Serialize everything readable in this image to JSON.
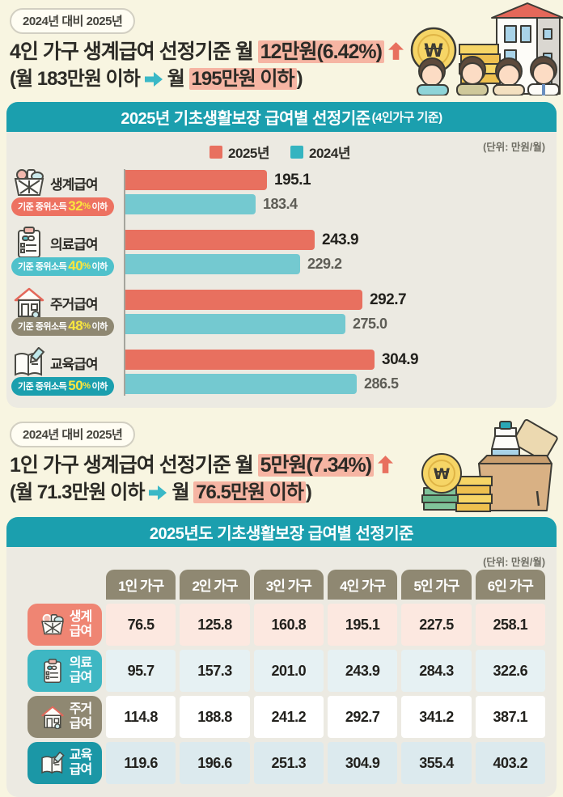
{
  "colors": {
    "page_bg": "#f8f5e1",
    "panel_bg": "#eceae2",
    "banner_teal": "#1b9fae",
    "highlight_pink": "#f6b5a3",
    "bar_2025_red": "#e8705f",
    "bar_2024_teal": "#74c9d0",
    "legend_2024_teal": "#35b4c0",
    "table_header_olive": "#8f8872",
    "pill_yellow_text": "#f9e53e"
  },
  "section1": {
    "badge": "2024년 대비 2025년",
    "title_pre": "4인 가구 생계급여 선정기준 월 ",
    "title_highlight": "12만원(6.42%)",
    "sub_pre": "(월 183만원 이하",
    "sub_mid": "월 ",
    "sub_highlight": "195만원 이하",
    "sub_post": ")"
  },
  "section2": {
    "badge": "2024년 대비 2025년",
    "title_pre": "1인 가구 생계급여 선정기준 월 ",
    "title_highlight": "5만원(7.34%)",
    "sub_pre": "(월 71.3만원 이하",
    "sub_mid": "월 ",
    "sub_highlight": "76.5만원 이하",
    "sub_post": ")"
  },
  "chart_data": [
    {
      "type": "bar",
      "orientation": "horizontal",
      "title": "2025년 기초생활보장 급여별 선정기준",
      "title_note": "(4인가구 기준)",
      "unit": "(단위: 만원/월)",
      "legend": [
        {
          "label": "2025년",
          "color": "#e8705f"
        },
        {
          "label": "2024년",
          "color": "#35b4c0"
        }
      ],
      "categories": [
        "생계급여",
        "의료급여",
        "주거급여",
        "교육급여"
      ],
      "series": [
        {
          "name": "2025년",
          "values": [
            "195.1",
            "243.9",
            "292.7",
            "304.9"
          ]
        },
        {
          "name": "2024년",
          "values": [
            "183.4",
            "229.2",
            "275.0",
            "286.5"
          ]
        }
      ],
      "thresholds": [
        {
          "pre": "기준 중위소득",
          "num": "32",
          "sign": "%",
          "post": "이하",
          "color": "#ed7261"
        },
        {
          "pre": "기준 중위소득",
          "num": "40",
          "sign": "%",
          "post": "이하",
          "color": "#4fc1cb"
        },
        {
          "pre": "기준 중위소득",
          "num": "48",
          "sign": "%",
          "post": "이하",
          "color": "#8f8872"
        },
        {
          "pre": "기준 중위소득",
          "num": "50",
          "sign": "%",
          "post": "이하",
          "color": "#1b9fae"
        }
      ]
    },
    {
      "type": "table",
      "title": "2025년도 기초생활보장 급여별 선정기준",
      "unit": "(단위: 만원/월)",
      "columns": [
        "1인 가구",
        "2인 가구",
        "3인 가구",
        "4인 가구",
        "5인 가구",
        "6인 가구"
      ],
      "rows": [
        {
          "l1": "생계",
          "l2": "급여",
          "values": [
            "76.5",
            "125.8",
            "160.8",
            "195.1",
            "227.5",
            "258.1"
          ]
        },
        {
          "l1": "의료",
          "l2": "급여",
          "values": [
            "95.7",
            "157.3",
            "201.0",
            "243.9",
            "284.3",
            "322.6"
          ]
        },
        {
          "l1": "주거",
          "l2": "급여",
          "values": [
            "114.8",
            "188.8",
            "241.2",
            "292.7",
            "341.2",
            "387.1"
          ]
        },
        {
          "l1": "교육",
          "l2": "급여",
          "values": [
            "119.6",
            "196.6",
            "251.3",
            "304.9",
            "355.4",
            "403.2"
          ]
        }
      ]
    }
  ]
}
